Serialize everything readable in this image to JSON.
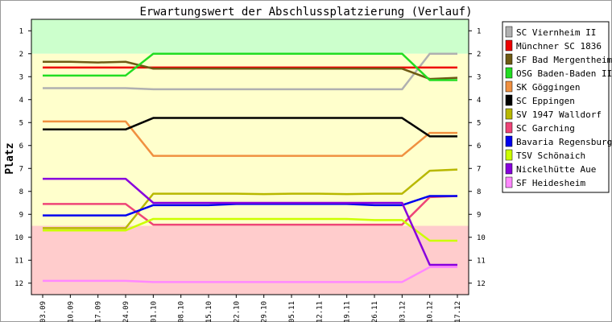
{
  "chart_data": {
    "type": "line",
    "title": "Erwartungswert der Abschlussplatzierung (Verlauf)",
    "xlabel": "",
    "ylabel": "Platz",
    "ylim": [
      0.5,
      12.5
    ],
    "y_reversed": true,
    "y_ticks": [
      "1",
      "2",
      "3",
      "4",
      "5",
      "6",
      "7",
      "8",
      "9",
      "10",
      "11",
      "12"
    ],
    "x": [
      "03.09",
      "10.09",
      "17.09",
      "24.09",
      "01.10",
      "08.10",
      "15.10",
      "22.10",
      "29.10",
      "05.11",
      "12.11",
      "19.11",
      "26.11",
      "03.12",
      "10.12",
      "17.12"
    ],
    "legend_position": "right",
    "grid": false,
    "zones": [
      {
        "from": 0.5,
        "to": 2.0,
        "color": "#ccffcc"
      },
      {
        "from": 2.0,
        "to": 9.5,
        "color": "#ffffcc"
      },
      {
        "from": 9.5,
        "to": 12.5,
        "color": "#ffcccc"
      }
    ],
    "series": [
      {
        "name": "SC Viernheim II",
        "color": "#b0b0b0",
        "values": [
          3.5,
          3.5,
          3.5,
          3.5,
          3.55,
          3.55,
          3.55,
          3.55,
          3.55,
          3.55,
          3.55,
          3.55,
          3.55,
          3.55,
          2.0,
          2.0
        ]
      },
      {
        "name": "Münchner SC 1836",
        "color": "#ee0000",
        "values": [
          2.6,
          2.6,
          2.6,
          2.6,
          2.6,
          2.6,
          2.6,
          2.6,
          2.6,
          2.6,
          2.6,
          2.6,
          2.6,
          2.6,
          2.6,
          2.6
        ]
      },
      {
        "name": "SF Bad Mergentheim",
        "color": "#6e5a14",
        "values": [
          2.35,
          2.35,
          2.38,
          2.35,
          2.65,
          2.65,
          2.65,
          2.65,
          2.65,
          2.65,
          2.65,
          2.65,
          2.65,
          2.65,
          3.1,
          3.05
        ]
      },
      {
        "name": "OSG Baden-Baden II",
        "color": "#22dd22",
        "values": [
          2.95,
          2.95,
          2.95,
          2.95,
          2.0,
          2.0,
          2.0,
          2.0,
          2.0,
          2.0,
          2.0,
          2.0,
          2.0,
          2.0,
          3.15,
          3.15
        ]
      },
      {
        "name": "SK Göggingen",
        "color": "#f09040",
        "values": [
          4.95,
          4.95,
          4.95,
          4.95,
          6.45,
          6.45,
          6.45,
          6.45,
          6.45,
          6.45,
          6.45,
          6.45,
          6.45,
          6.45,
          5.45,
          5.45
        ]
      },
      {
        "name": "SC Eppingen",
        "color": "#000000",
        "values": [
          5.3,
          5.3,
          5.3,
          5.3,
          4.8,
          4.8,
          4.8,
          4.8,
          4.8,
          4.8,
          4.8,
          4.8,
          4.8,
          4.8,
          5.6,
          5.6
        ]
      },
      {
        "name": "SV 1947 Walldorf",
        "color": "#b8b800",
        "values": [
          9.6,
          9.6,
          9.6,
          9.6,
          8.1,
          8.1,
          8.1,
          8.1,
          8.12,
          8.1,
          8.1,
          8.12,
          8.1,
          8.1,
          7.1,
          7.05
        ]
      },
      {
        "name": "SC Garching",
        "color": "#ee4477",
        "values": [
          8.55,
          8.55,
          8.55,
          8.55,
          9.45,
          9.45,
          9.45,
          9.45,
          9.45,
          9.45,
          9.45,
          9.45,
          9.45,
          9.45,
          8.25,
          8.2
        ]
      },
      {
        "name": "Bavaria Regensburg",
        "color": "#0000ee",
        "values": [
          9.05,
          9.05,
          9.05,
          9.05,
          8.6,
          8.6,
          8.6,
          8.55,
          8.55,
          8.55,
          8.55,
          8.55,
          8.6,
          8.6,
          8.2,
          8.2
        ]
      },
      {
        "name": "TSV Schönaich",
        "color": "#ccff00",
        "values": [
          9.7,
          9.7,
          9.7,
          9.7,
          9.2,
          9.2,
          9.2,
          9.2,
          9.2,
          9.2,
          9.2,
          9.2,
          9.25,
          9.25,
          10.15,
          10.15
        ]
      },
      {
        "name": "Nickelhütte Aue",
        "color": "#8800dd",
        "values": [
          7.45,
          7.45,
          7.45,
          7.45,
          8.5,
          8.5,
          8.5,
          8.5,
          8.5,
          8.5,
          8.5,
          8.5,
          8.5,
          8.5,
          11.2,
          11.2
        ]
      },
      {
        "name": "SF Heidesheim",
        "color": "#ff88ff",
        "values": [
          11.9,
          11.9,
          11.9,
          11.9,
          11.95,
          11.95,
          11.95,
          11.95,
          11.95,
          11.95,
          11.95,
          11.95,
          11.95,
          11.95,
          11.3,
          11.3
        ]
      }
    ]
  }
}
